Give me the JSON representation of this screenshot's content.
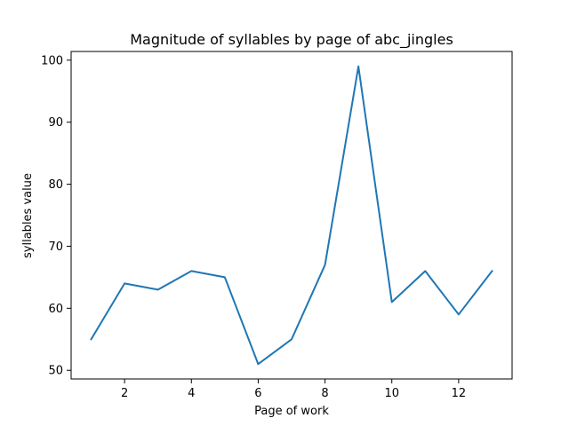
{
  "chart_data": {
    "type": "line",
    "title": "Magnitude of syllables by page of abc_jingles",
    "xlabel": "Page of work",
    "ylabel": "syllables value",
    "x": [
      1,
      2,
      3,
      4,
      5,
      6,
      7,
      8,
      9,
      10,
      11,
      12,
      13
    ],
    "series": [
      {
        "values": [
          55,
          64,
          63,
          66,
          65,
          51,
          55,
          67,
          99,
          61,
          66,
          59,
          66
        ]
      }
    ],
    "xlim": [
      0.4,
      13.6
    ],
    "ylim": [
      48.6,
      101.4
    ],
    "xticks": [
      2,
      4,
      6,
      8,
      10,
      12
    ],
    "yticks": [
      50,
      60,
      70,
      80,
      90,
      100
    ],
    "grid": false,
    "line_color": "#1f77b4"
  }
}
